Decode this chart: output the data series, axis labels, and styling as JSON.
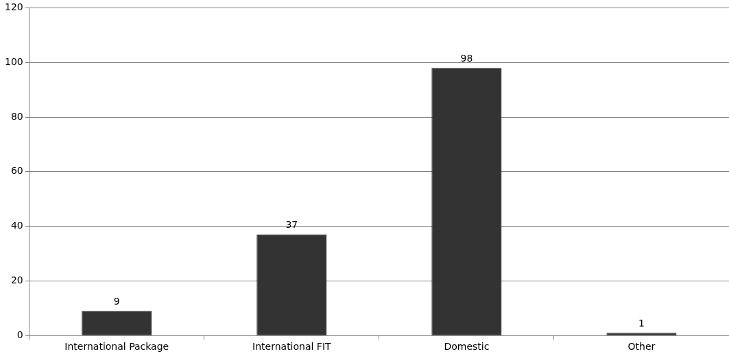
{
  "chart_data": {
    "type": "bar",
    "categories": [
      "International Package",
      "International FIT",
      "Domestic",
      "Other"
    ],
    "values": [
      9,
      37,
      98,
      1
    ],
    "color": "#333333",
    "ylim": [
      0,
      120
    ],
    "yticks": [
      0,
      20,
      40,
      60,
      80,
      100,
      120
    ],
    "grid": "y",
    "data_labels": true
  }
}
